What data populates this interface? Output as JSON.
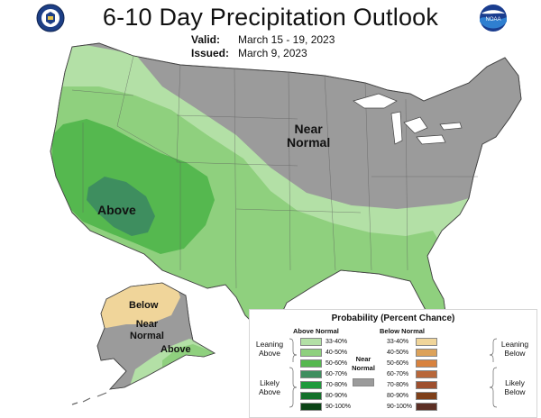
{
  "header": {
    "title": "6-10 Day Precipitation Outlook",
    "valid_label": "Valid:",
    "valid_value": "March 15 - 19, 2023",
    "issued_label": "Issued:",
    "issued_value": "March 9, 2023"
  },
  "logos": {
    "left": "doc-seal-icon",
    "right": "noaa-logo-icon"
  },
  "map_labels": {
    "near_normal_conus": "Near\nNormal",
    "above_conus": "Above",
    "below_alaska": "Below",
    "near_normal_alaska": "Near\nNormal",
    "above_alaska": "Above"
  },
  "legend": {
    "title": "Probability (Percent Chance)",
    "above_normal_header": "Above Normal",
    "below_normal_header": "Below Normal",
    "near_normal_label": "Near\nNormal",
    "leaning_above": "Leaning\nAbove",
    "likely_above": "Likely\nAbove",
    "leaning_below": "Leaning\nBelow",
    "likely_below": "Likely\nBelow",
    "ranges": [
      "33-40%",
      "40-50%",
      "50-60%",
      "60-70%",
      "70-80%",
      "80-90%",
      "90-100%"
    ],
    "above_colors": [
      "#b3e0a6",
      "#8fd07e",
      "#55b84f",
      "#3e8e5f",
      "#1f9a3c",
      "#13712a",
      "#0b4416"
    ],
    "below_colors": [
      "#f0d59a",
      "#dca25a",
      "#d8823e",
      "#b8673a",
      "#9e4f2e",
      "#7e3f19",
      "#5c2f24"
    ],
    "near_color": "#9b9b9b"
  },
  "map_colors": {
    "near_normal": "#9b9b9b",
    "above_33_40": "#b3e0a6",
    "above_40_50": "#8fd07e",
    "above_50_60": "#55b84f",
    "above_60_70": "#3e8e5f",
    "below_33_40": "#f0d59a"
  }
}
